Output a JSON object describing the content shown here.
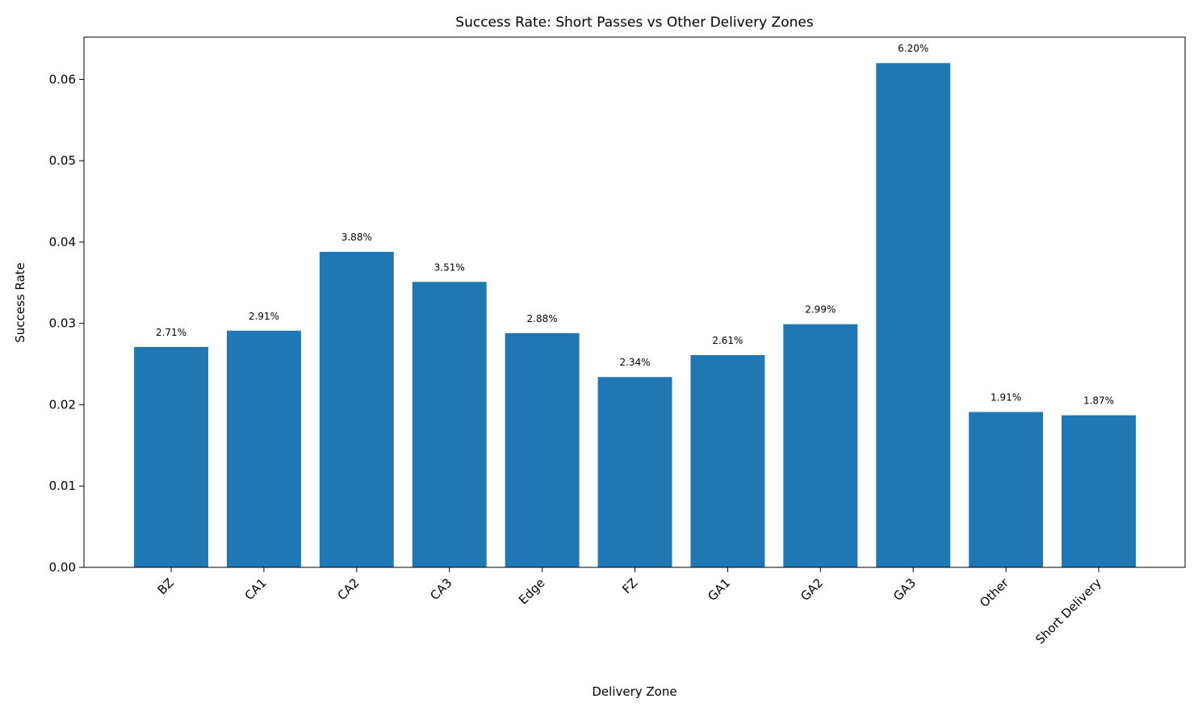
{
  "chart_data": {
    "type": "bar",
    "title": "Success Rate: Short Passes vs Other Delivery Zones",
    "x_label": "Delivery Zone",
    "y_label": "Success Rate",
    "categories": [
      "BZ",
      "CA1",
      "CA2",
      "CA3",
      "Edge",
      "FZ",
      "GA1",
      "GA2",
      "GA3",
      "Other",
      "Short Delivery"
    ],
    "values": [
      0.0271,
      0.0291,
      0.0388,
      0.0351,
      0.0288,
      0.0234,
      0.0261,
      0.0299,
      0.062,
      0.0191,
      0.0187
    ],
    "value_labels": [
      "2.71%",
      "2.91%",
      "3.88%",
      "3.51%",
      "2.88%",
      "2.34%",
      "2.61%",
      "2.99%",
      "6.20%",
      "1.91%",
      "1.87%"
    ],
    "color": "#1f77b4",
    "ylim": [
      0,
      0.0652
    ],
    "yticks": [
      {
        "value": 0,
        "label": "0.00"
      },
      0.01,
      0.02,
      0.03,
      0.04,
      0.05,
      0.06
    ],
    "grid": false
  }
}
